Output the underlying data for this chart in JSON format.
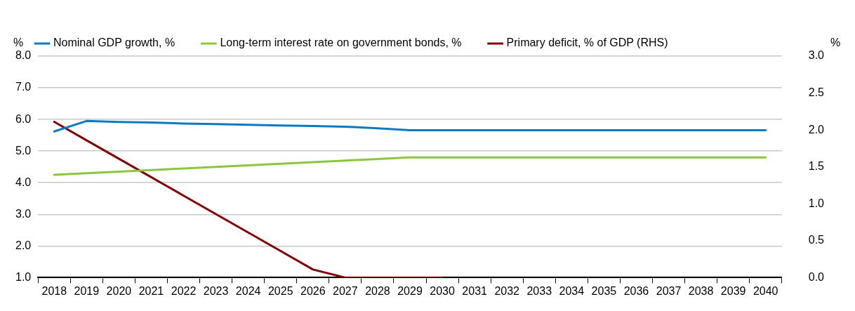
{
  "chart_data": {
    "type": "line",
    "ylabel": "%",
    "y2label": "%",
    "categories": [
      "2018",
      "2019",
      "2020",
      "2021",
      "2022",
      "2023",
      "2024",
      "2025",
      "2026",
      "2027",
      "2028",
      "2029",
      "2030",
      "2031",
      "2032",
      "2033",
      "2034",
      "2035",
      "2036",
      "2037",
      "2038",
      "2039",
      "2040"
    ],
    "series": [
      {
        "name": "Nominal GDP growth, %",
        "color": "#0b7bc1",
        "values": [
          5.62,
          5.95,
          5.92,
          5.9,
          5.87,
          5.85,
          5.83,
          5.81,
          5.79,
          5.77,
          5.72,
          5.66,
          5.66,
          5.66,
          5.66,
          5.66,
          5.66,
          5.66,
          5.66,
          5.66,
          5.66,
          5.66,
          5.66
        ]
      },
      {
        "name": "Long-term interest rate on government bonds, %",
        "color": "#8cc63f",
        "values": [
          4.25,
          4.3,
          4.35,
          4.4,
          4.45,
          4.5,
          4.55,
          4.6,
          4.65,
          4.7,
          4.75,
          4.8,
          4.8,
          4.8,
          4.8,
          4.8,
          4.8,
          4.8,
          4.8,
          4.8,
          4.8,
          4.8,
          4.8
        ]
      },
      {
        "name": "Primary deficit, % of GDP (RHS)",
        "color": "#7f0000",
        "axis": "y2",
        "values": [
          2.11,
          1.86,
          1.61,
          1.36,
          1.11,
          0.86,
          0.61,
          0.36,
          0.11,
          0,
          0,
          0,
          0,
          null,
          null,
          null,
          null,
          null,
          null,
          null,
          null,
          null,
          null
        ]
      }
    ],
    "ylim": [
      1,
      8
    ],
    "yticks": [
      {
        "value": 1,
        "label": "1.0"
      },
      {
        "value": 2,
        "label": "2.0"
      },
      {
        "value": 3,
        "label": "3.0"
      },
      {
        "value": 4,
        "label": "4.0"
      },
      {
        "value": 5,
        "label": "5.0"
      },
      {
        "value": 6,
        "label": "6.0"
      },
      {
        "value": 7,
        "label": "7.0"
      },
      {
        "value": 8,
        "label": "8.0"
      }
    ],
    "y2lim": [
      0,
      3
    ],
    "y2ticks": [
      {
        "value": 0,
        "label": "0.0"
      },
      {
        "value": 0.5,
        "label": "0.5"
      },
      {
        "value": 1,
        "label": "1.0"
      },
      {
        "value": 1.5,
        "label": "1.5"
      },
      {
        "value": 2,
        "label": "2.0"
      },
      {
        "value": 2.5,
        "label": "2.5"
      },
      {
        "value": 3,
        "label": "3.0"
      }
    ],
    "grid": "y",
    "legend": "top",
    "marker": "none",
    "line_style": "solid"
  }
}
